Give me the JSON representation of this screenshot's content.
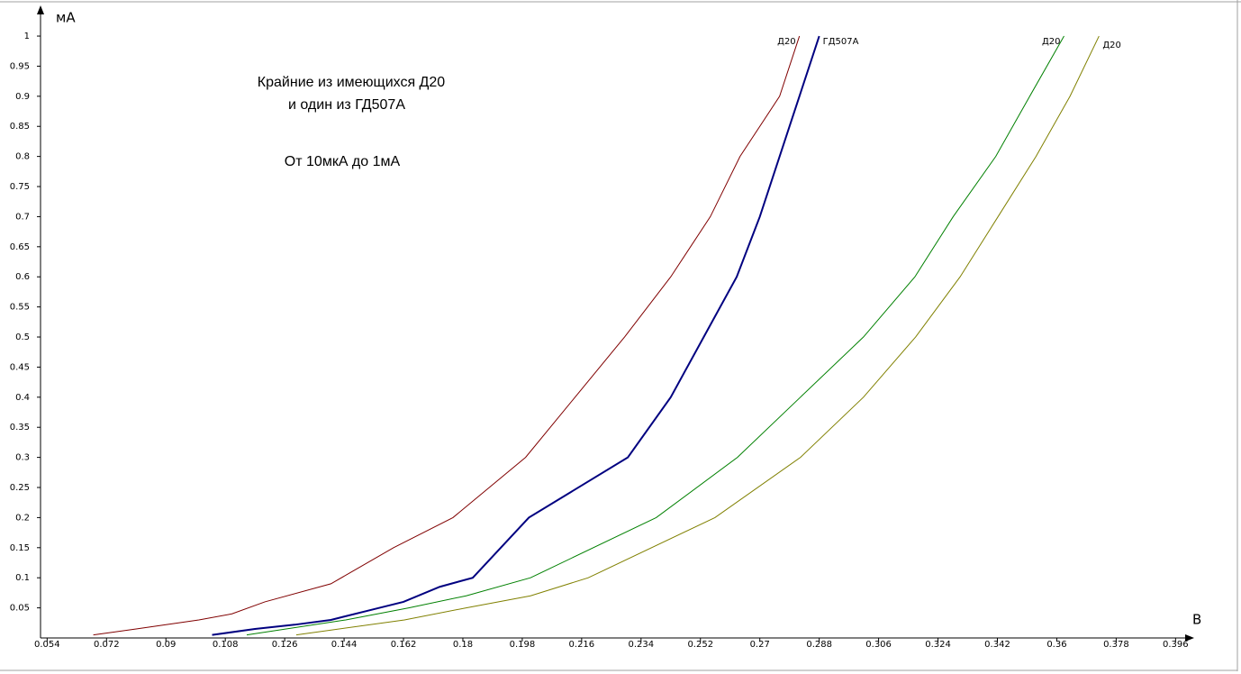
{
  "chart_data": {
    "type": "line",
    "annotations": [
      "Крайние из имеющихся Д20",
      "и один из ГД507А",
      "От 10мкА до 1мА"
    ],
    "x_label": "В",
    "y_label": "мА",
    "xlim": [
      0.052,
      0.4
    ],
    "ylim": [
      0,
      1.03
    ],
    "xticks": [
      0.054,
      0.072,
      0.09,
      0.108,
      0.126,
      0.144,
      0.162,
      0.18,
      0.198,
      0.216,
      0.234,
      0.252,
      0.27,
      0.288,
      0.306,
      0.324,
      0.342,
      0.36,
      0.378,
      0.396
    ],
    "yticks": [
      0.05,
      0.1,
      0.15,
      0.2,
      0.25,
      0.3,
      0.35,
      0.4,
      0.45,
      0.5,
      0.55,
      0.6,
      0.65,
      0.7,
      0.75,
      0.8,
      0.85,
      0.9,
      0.95,
      1
    ],
    "series": [
      {
        "name": "Д20",
        "color": "#800000",
        "width": 1,
        "x": [
          0.068,
          0.081,
          0.1,
          0.11,
          0.12,
          0.14,
          0.159,
          0.177,
          0.199,
          0.214,
          0.229,
          0.243,
          0.255,
          0.264,
          0.276,
          0.282
        ],
        "values": [
          0.005,
          0.015,
          0.03,
          0.04,
          0.06,
          0.09,
          0.15,
          0.2,
          0.3,
          0.4,
          0.5,
          0.6,
          0.7,
          0.8,
          0.9,
          1
        ]
      },
      {
        "name": "ГД507А",
        "color": "#000080",
        "width": 2,
        "x": [
          0.104,
          0.117,
          0.129,
          0.14,
          0.151,
          0.162,
          0.173,
          0.183,
          0.2,
          0.23,
          0.243,
          0.253,
          0.263,
          0.27,
          0.279,
          0.288
        ],
        "values": [
          0.005,
          0.015,
          0.022,
          0.03,
          0.045,
          0.06,
          0.085,
          0.1,
          0.2,
          0.3,
          0.4,
          0.5,
          0.6,
          0.7,
          0.85,
          1
        ]
      },
      {
        "name": "Д20",
        "color": "#008000",
        "width": 1,
        "x": [
          0.1145,
          0.1445,
          0.1636,
          0.181,
          0.2005,
          0.2386,
          0.2632,
          0.2823,
          0.3014,
          0.317,
          0.3286,
          0.3415,
          0.3518,
          0.3622
        ],
        "values": [
          0.005,
          0.03,
          0.05,
          0.07,
          0.1,
          0.2,
          0.3,
          0.4,
          0.5,
          0.6,
          0.7,
          0.8,
          0.9,
          1
        ]
      },
      {
        "name": "Д20",
        "color": "#808000",
        "width": 1,
        "x": [
          0.1295,
          0.1623,
          0.181,
          0.2005,
          0.218,
          0.2564,
          0.2823,
          0.3014,
          0.3172,
          0.3307,
          0.3422,
          0.3537,
          0.364,
          0.3728
        ],
        "values": [
          0.005,
          0.03,
          0.05,
          0.07,
          0.1,
          0.2,
          0.3,
          0.4,
          0.5,
          0.6,
          0.7,
          0.8,
          0.9,
          1
        ]
      }
    ]
  }
}
